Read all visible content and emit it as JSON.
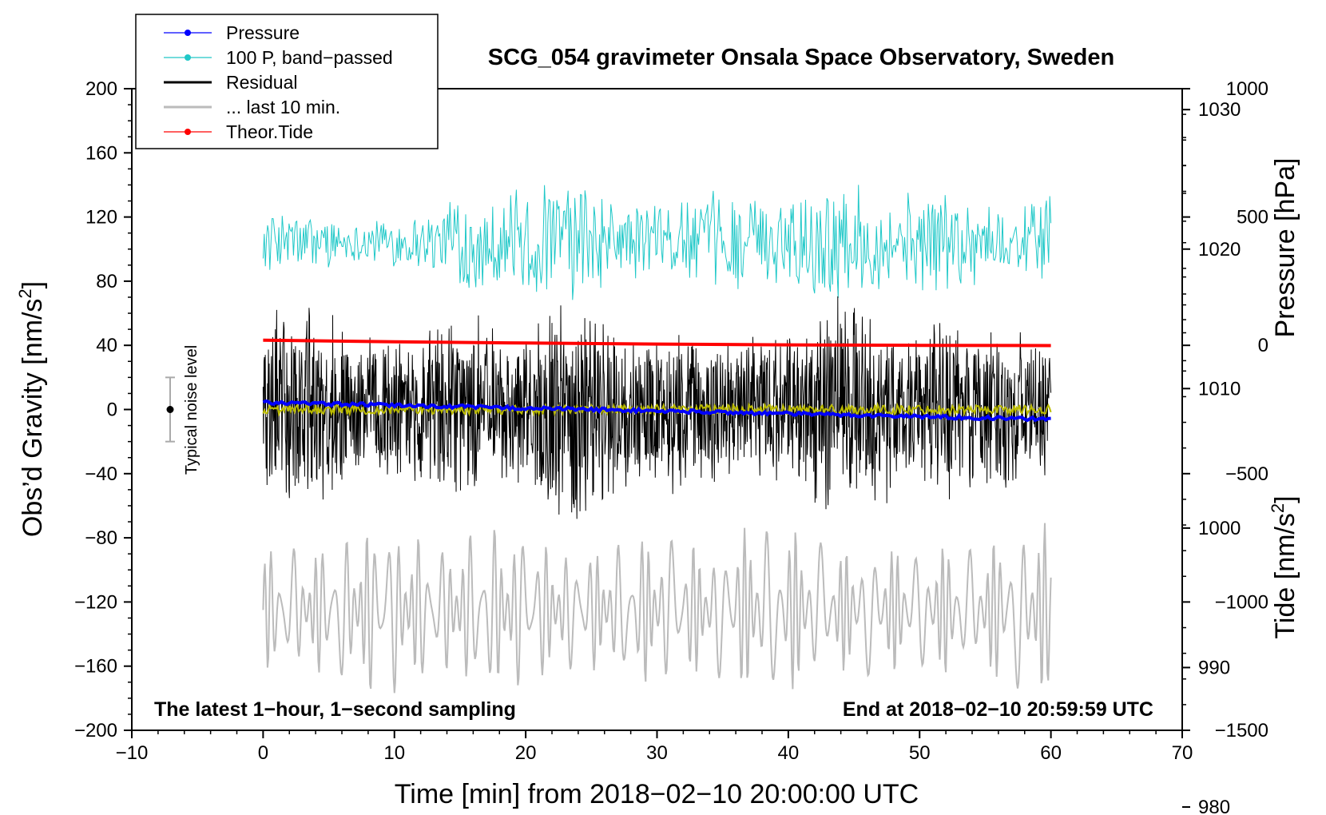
{
  "chart_data": {
    "type": "line",
    "title": "SCG_054 gravimeter Onsala Space Observatory, Sweden",
    "xlabel": "Time [min] from 2018−02−10 20:00:00 UTC",
    "ylabel_left_main": "Obs’d Gravity [nm/s",
    "ylabel_left_sup": "2",
    "ylabel_left_close": "]",
    "ylabel_right_pressure": "Pressure [hPa]",
    "ylabel_right_tide_main": "Tide [nm/s",
    "ylabel_right_tide_sup": "2",
    "ylabel_right_tide_close": "]",
    "xlim": [
      -10,
      70
    ],
    "ylim": [
      -200,
      200
    ],
    "pressure_ylim": [
      985.5,
      1031.5
    ],
    "tide_ylim": [
      -1500,
      1000
    ],
    "x_ticks": [
      -10,
      0,
      10,
      20,
      30,
      40,
      50,
      60,
      70
    ],
    "x_tick_labels": [
      "−10",
      "0",
      "10",
      "20",
      "30",
      "40",
      "50",
      "60",
      "70"
    ],
    "y_ticks": [
      -200,
      -160,
      -120,
      -80,
      -40,
      0,
      40,
      80,
      120,
      160,
      200
    ],
    "y_tick_labels": [
      "−200",
      "−160",
      "−120",
      "−80",
      "−40",
      "0",
      "40",
      "80",
      "120",
      "160",
      "200"
    ],
    "pressure_ticks": [
      980,
      990,
      1000,
      1010,
      1020,
      1030
    ],
    "pressure_tick_labels": [
      "980",
      "990",
      "1000",
      "1010",
      "1020",
      "1030"
    ],
    "tide_ticks": [
      -1500,
      -1000,
      -500,
      0,
      500,
      1000
    ],
    "tide_tick_labels": [
      "−1500",
      "−1000",
      "−500",
      "0",
      "500",
      "1000"
    ],
    "legend": [
      {
        "label": "Pressure",
        "color": "#0000ff",
        "marker": true
      },
      {
        "label": "100 P, band−passed",
        "color": "#20c8c8",
        "marker": true
      },
      {
        "label": "Residual",
        "color": "#000000",
        "marker": false
      },
      {
        "label": "... last 10 min.",
        "color": "#bbbbbb",
        "marker": false
      },
      {
        "label": "Theor.Tide",
        "color": "#ff0000",
        "marker": true
      }
    ],
    "legend_position": "top-left",
    "noise_label": "Typical noise level",
    "noise_center": 0,
    "noise_range": [
      -20,
      20
    ],
    "annotation_left": "The latest 1−hour, 1−second sampling",
    "annotation_right": "End at 2018−02−10 20:59:59 UTC",
    "series": [
      {
        "name": "Pressure",
        "axis": "pressure",
        "color": "#0000ff",
        "x": [
          0,
          10,
          20,
          30,
          40,
          50,
          60
        ],
        "values": [
          1009.0,
          1008.8,
          1008.6,
          1008.4,
          1008.2,
          1008.0,
          1007.8
        ]
      },
      {
        "name": "100 P, band−passed",
        "axis": "left",
        "color": "#20c8c8",
        "x_range": [
          0,
          60
        ],
        "center": 105,
        "amplitude_range": [
          8,
          45
        ]
      },
      {
        "name": "Residual",
        "axis": "left",
        "color": "#000000",
        "x_range": [
          0,
          60
        ],
        "center": 0,
        "amplitude_range": [
          20,
          75
        ]
      },
      {
        "name": "Residual smoothed",
        "axis": "left",
        "color": "#bbbb00",
        "x_range": [
          0,
          60
        ],
        "center": 0,
        "amplitude": 3
      },
      {
        "name": "... last 10 min.",
        "axis": "left",
        "color": "#bbbbbb",
        "x_range": [
          0,
          60
        ],
        "center": -125,
        "amplitude_range": [
          20,
          55
        ]
      },
      {
        "name": "Theor.Tide",
        "axis": "tide",
        "color": "#ff0000",
        "x": [
          0,
          10,
          20,
          30,
          40,
          50,
          60
        ],
        "values": [
          20,
          14,
          9,
          5,
          2,
          0,
          -1
        ]
      }
    ]
  }
}
